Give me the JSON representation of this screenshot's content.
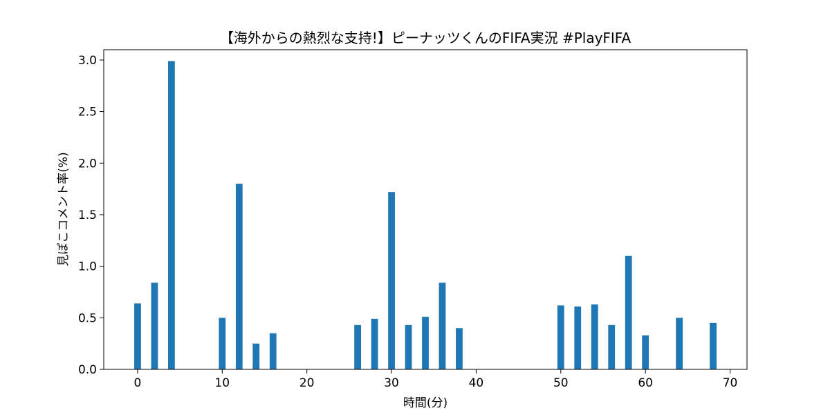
{
  "chart_data": {
    "type": "bar",
    "title": "【海外からの熱烈な支持!】ピーナッツくんのFIFA実況 #PlayFIFA",
    "xlabel": "時間(分)",
    "ylabel": "見ぽこコメント率(%)",
    "xlim": [
      -4,
      72
    ],
    "ylim": [
      0,
      3.1
    ],
    "xticks": [
      0,
      10,
      20,
      30,
      40,
      50,
      60,
      70
    ],
    "yticks": [
      0.0,
      0.5,
      1.0,
      1.5,
      2.0,
      2.5,
      3.0
    ],
    "xtick_labels": [
      "0",
      "10",
      "20",
      "30",
      "40",
      "50",
      "60",
      "70"
    ],
    "ytick_labels": [
      "0.0",
      "0.5",
      "1.0",
      "1.5",
      "2.0",
      "2.5",
      "3.0"
    ],
    "bar_color": "#1f77b4",
    "grid": false,
    "x": [
      0,
      2,
      4,
      10,
      12,
      14,
      16,
      26,
      28,
      30,
      32,
      34,
      36,
      38,
      50,
      52,
      54,
      56,
      58,
      60,
      64,
      68
    ],
    "values": [
      0.64,
      0.84,
      2.99,
      0.5,
      1.8,
      0.25,
      0.35,
      0.43,
      0.49,
      1.72,
      0.43,
      0.51,
      0.84,
      0.4,
      0.62,
      0.61,
      0.63,
      0.43,
      1.1,
      0.33,
      0.5,
      0.45
    ]
  }
}
